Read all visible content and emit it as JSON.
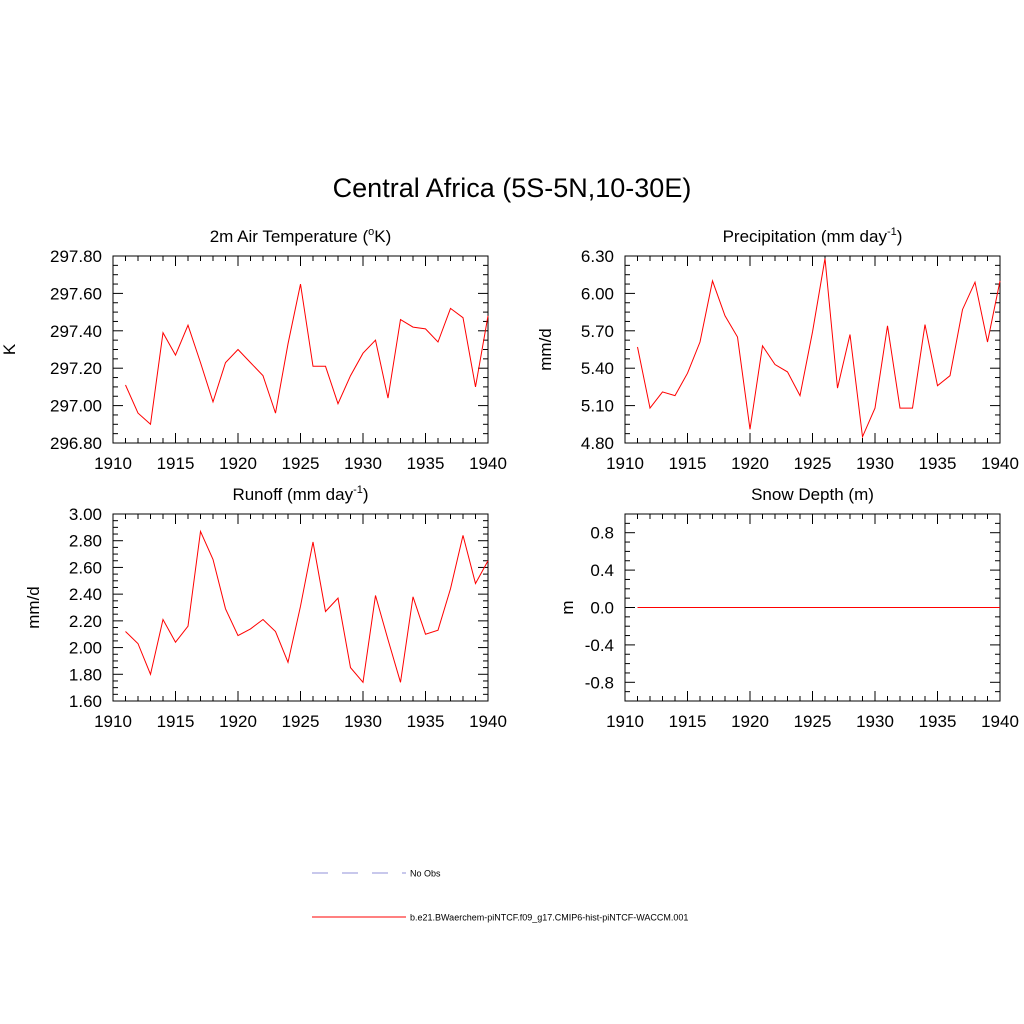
{
  "figure": {
    "title": "Central Africa (5S-5N,10-30E)",
    "line_color": "#ff0000",
    "obs_color": "#a8a8e0"
  },
  "legend": {
    "items": [
      {
        "label": "No Obs",
        "style": "dashed",
        "color": "#a8a8e0"
      },
      {
        "label": "b.e21.BWaerchem-piNTCF.f09_g17.CMIP6-hist-piNTCF-WACCM.001",
        "style": "solid",
        "color": "#ff0000"
      }
    ]
  },
  "chart_data": [
    {
      "id": "temp",
      "type": "line",
      "title": "2m Air Temperature (",
      "title_sup": "o",
      "title_end": "K)",
      "ylabel": "K",
      "xlim": [
        1910,
        1940
      ],
      "ylim": [
        296.8,
        297.8
      ],
      "yticks": [
        296.8,
        297.0,
        297.2,
        297.4,
        297.6,
        297.8
      ],
      "ytick_labels": [
        "296.80",
        "297.00",
        "297.20",
        "297.40",
        "297.60",
        "297.80"
      ],
      "xticks": [
        1910,
        1915,
        1920,
        1925,
        1930,
        1935,
        1940
      ],
      "series": [
        {
          "x": [
            1911,
            1912,
            1913,
            1914,
            1915,
            1916,
            1917,
            1918,
            1919,
            1920,
            1921,
            1922,
            1923,
            1924,
            1925,
            1926,
            1927,
            1928,
            1929,
            1930,
            1931,
            1932,
            1933,
            1934,
            1935,
            1936,
            1937,
            1938,
            1939,
            1940
          ],
          "values": [
            297.11,
            296.96,
            296.9,
            297.39,
            297.27,
            297.43,
            297.23,
            297.02,
            297.23,
            297.3,
            297.23,
            297.16,
            296.96,
            297.33,
            297.65,
            297.21,
            297.21,
            297.01,
            297.16,
            297.28,
            297.35,
            297.04,
            297.46,
            297.42,
            297.41,
            297.34,
            297.52,
            297.47,
            297.1,
            297.48
          ]
        }
      ]
    },
    {
      "id": "precip",
      "type": "line",
      "title": "Precipitation (mm day",
      "title_sup": "-1",
      "title_end": ")",
      "ylabel": "mm/d",
      "xlim": [
        1910,
        1940
      ],
      "ylim": [
        4.8,
        6.3
      ],
      "yticks": [
        4.8,
        5.1,
        5.4,
        5.7,
        6.0,
        6.3
      ],
      "ytick_labels": [
        "4.80",
        "5.10",
        "5.40",
        "5.70",
        "6.00",
        "6.30"
      ],
      "xticks": [
        1910,
        1915,
        1920,
        1925,
        1930,
        1935,
        1940
      ],
      "series": [
        {
          "x": [
            1911,
            1912,
            1913,
            1914,
            1915,
            1916,
            1917,
            1918,
            1919,
            1920,
            1921,
            1922,
            1923,
            1924,
            1925,
            1926,
            1927,
            1928,
            1929,
            1930,
            1931,
            1932,
            1933,
            1934,
            1935,
            1936,
            1937,
            1938,
            1939,
            1940
          ],
          "values": [
            5.57,
            5.08,
            5.21,
            5.18,
            5.36,
            5.61,
            6.1,
            5.82,
            5.65,
            4.91,
            5.58,
            5.43,
            5.37,
            5.18,
            5.69,
            6.28,
            5.24,
            5.67,
            4.85,
            5.08,
            5.74,
            5.08,
            5.08,
            5.75,
            5.26,
            5.34,
            5.87,
            6.09,
            5.61,
            6.1
          ]
        }
      ]
    },
    {
      "id": "runoff",
      "type": "line",
      "title": "Runoff (mm day",
      "title_sup": "-1",
      "title_end": ")",
      "ylabel": "mm/d",
      "xlim": [
        1910,
        1940
      ],
      "ylim": [
        1.6,
        3.0
      ],
      "yticks": [
        1.6,
        1.8,
        2.0,
        2.2,
        2.4,
        2.6,
        2.8,
        3.0
      ],
      "ytick_labels": [
        "1.60",
        "1.80",
        "2.00",
        "2.20",
        "2.40",
        "2.60",
        "2.80",
        "3.00"
      ],
      "xticks": [
        1910,
        1915,
        1920,
        1925,
        1930,
        1935,
        1940
      ],
      "series": [
        {
          "x": [
            1911,
            1912,
            1913,
            1914,
            1915,
            1916,
            1917,
            1918,
            1919,
            1920,
            1921,
            1922,
            1923,
            1924,
            1925,
            1926,
            1927,
            1928,
            1929,
            1930,
            1931,
            1932,
            1933,
            1934,
            1935,
            1936,
            1937,
            1938,
            1939,
            1940
          ],
          "values": [
            2.12,
            2.03,
            1.8,
            2.21,
            2.04,
            2.16,
            2.87,
            2.66,
            2.29,
            2.09,
            2.14,
            2.21,
            2.12,
            1.89,
            2.31,
            2.79,
            2.27,
            2.37,
            1.85,
            1.74,
            2.39,
            2.06,
            1.74,
            2.38,
            2.1,
            2.13,
            2.44,
            2.84,
            2.48,
            2.65
          ]
        }
      ]
    },
    {
      "id": "snow",
      "type": "line",
      "title": "Snow Depth (m)",
      "title_sup": "",
      "title_end": "",
      "ylabel": "m",
      "xlim": [
        1910,
        1940
      ],
      "ylim": [
        -1.0,
        1.0
      ],
      "yticks": [
        -0.8,
        -0.4,
        0.0,
        0.4,
        0.8
      ],
      "ytick_labels": [
        "-0.8",
        "-0.4",
        "0.0",
        "0.4",
        "0.8"
      ],
      "xticks": [
        1910,
        1915,
        1920,
        1925,
        1930,
        1935,
        1940
      ],
      "series": [
        {
          "x": [
            1911,
            1940
          ],
          "values": [
            0.0,
            0.0
          ]
        }
      ]
    }
  ]
}
